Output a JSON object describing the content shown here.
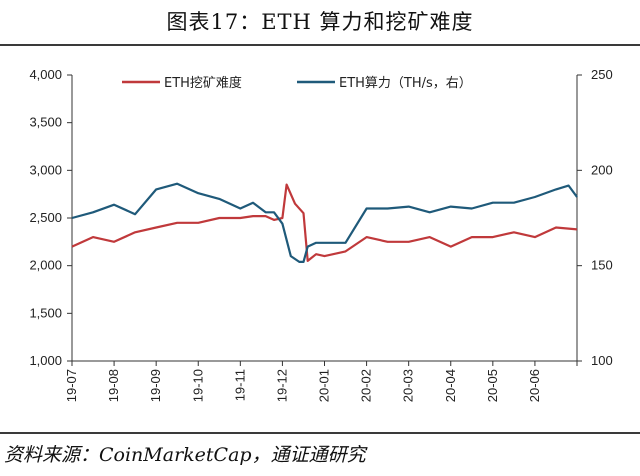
{
  "header": {
    "title": "图表17：ETH 算力和挖矿难度"
  },
  "footer": {
    "source": "资料来源：CoinMarketCap，通证通研究"
  },
  "chart_data": {
    "type": "line",
    "x_ticks": [
      "19-07",
      "19-08",
      "19-09",
      "19-10",
      "19-11",
      "19-12",
      "20-01",
      "20-02",
      "20-03",
      "20-04",
      "20-05",
      "20-06"
    ],
    "y_left": {
      "lim": [
        1000,
        4000
      ],
      "ticks": [
        "1,000",
        "1,500",
        "2,000",
        "2,500",
        "3,000",
        "3,500",
        "4,000"
      ]
    },
    "y_right": {
      "lim": [
        100,
        250
      ],
      "ticks": [
        "100",
        "150",
        "200",
        "250"
      ]
    },
    "legend_position": "top-center",
    "grid": false,
    "series": [
      {
        "name": "ETH挖矿难度",
        "axis": "left",
        "color": "#c0393b",
        "months": [
          0,
          0.5,
          1,
          1.5,
          2,
          2.5,
          3,
          3.5,
          4,
          4.3,
          4.6,
          4.8,
          5,
          5.1,
          5.3,
          5.5,
          5.6,
          5.8,
          6,
          6.5,
          7,
          7.5,
          8,
          8.5,
          9,
          9.5,
          10,
          10.5,
          11,
          11.5,
          12
        ],
        "values": [
          2200,
          2300,
          2250,
          2350,
          2400,
          2450,
          2450,
          2500,
          2500,
          2520,
          2520,
          2480,
          2500,
          2850,
          2650,
          2550,
          2050,
          2120,
          2100,
          2150,
          2300,
          2250,
          2250,
          2300,
          2200,
          2300,
          2300,
          2350,
          2300,
          2400,
          2380
        ]
      },
      {
        "name": "ETH算力（TH/s，右）",
        "axis": "right",
        "color": "#1f5a7a",
        "months": [
          0,
          0.5,
          1,
          1.5,
          2,
          2.5,
          3,
          3.5,
          4,
          4.3,
          4.6,
          4.8,
          5,
          5.2,
          5.4,
          5.5,
          5.6,
          5.8,
          6,
          6.5,
          7,
          7.5,
          8,
          8.5,
          9,
          9.5,
          10,
          10.5,
          11,
          11.5,
          11.8,
          12
        ],
        "values": [
          175,
          178,
          182,
          177,
          190,
          193,
          188,
          185,
          180,
          183,
          178,
          178,
          172,
          155,
          152,
          152,
          160,
          162,
          162,
          162,
          180,
          180,
          181,
          178,
          181,
          180,
          183,
          183,
          186,
          190,
          192,
          186
        ]
      }
    ]
  }
}
